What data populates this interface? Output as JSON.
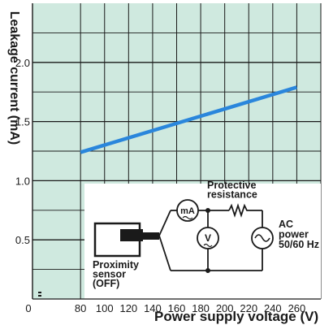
{
  "chart_data": {
    "type": "line",
    "title": "",
    "xlabel": "Power supply voltage (V)",
    "ylabel": "Leakage current (mA)",
    "xlim": [
      40,
      280
    ],
    "ylim": [
      0,
      2.5
    ],
    "x_ticks": [
      80,
      100,
      120,
      140,
      160,
      180,
      200,
      220,
      240,
      260
    ],
    "x_origin_label": "0",
    "y_ticks": [
      "0.5",
      "1.0",
      "1.5",
      "2.0"
    ],
    "grid": true,
    "series": [
      {
        "x": [
          80,
          260
        ],
        "y": [
          1.24,
          1.79
        ]
      }
    ],
    "colors": {
      "background": "#cfe9df",
      "grid": "#1a1a1a",
      "line": "#2a86dc",
      "inset_bg": "#ffffff"
    }
  },
  "inset": {
    "sensor_label": [
      "Proximity",
      "sensor",
      "(OFF)"
    ],
    "resistance_label": [
      "Protective",
      "resistance"
    ],
    "power_label": [
      "AC",
      "power",
      "50/60 Hz"
    ],
    "ammeter_symbol": "mA",
    "voltmeter_symbol": "V",
    "icons": [
      "proximity-sensor-icon",
      "ammeter-icon",
      "voltmeter-icon",
      "resistor-icon",
      "ac-source-icon"
    ]
  }
}
